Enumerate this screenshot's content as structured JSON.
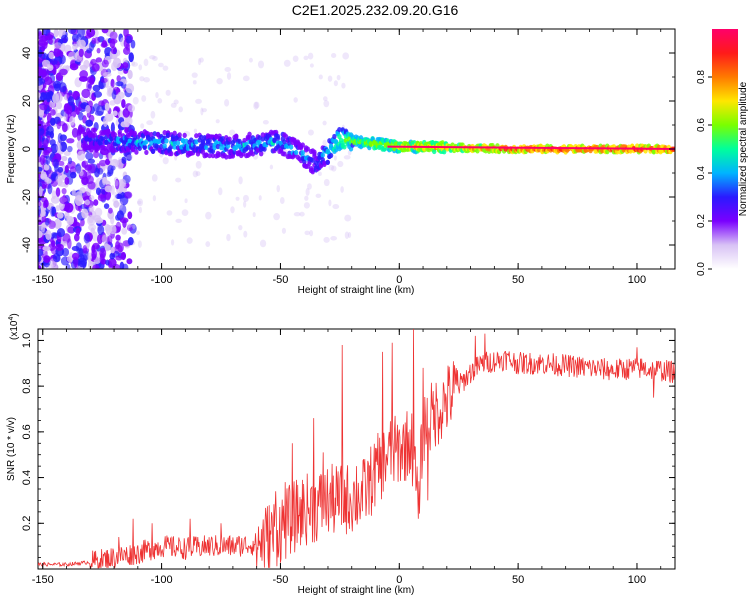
{
  "title": "C2E1.2025.232.09.20.G16",
  "chart_data": [
    {
      "type": "heatmap",
      "title": "C2E1.2025.232.09.20.G16",
      "xlabel": "Height of straight line (km)",
      "ylabel": "Frequency (Hz)",
      "xlim": [
        -152,
        116
      ],
      "ylim": [
        -50,
        50
      ],
      "xticks": [
        -150,
        -100,
        -50,
        0,
        50,
        100
      ],
      "yticks": [
        -40,
        -20,
        0,
        20,
        40
      ],
      "colorbar": {
        "label": "Normalized spectral amplitude",
        "range": [
          0,
          1
        ],
        "ticks": [
          "0.0",
          "0.2",
          "0.4",
          "0.6",
          "0.8"
        ],
        "colors": [
          "#ffffff",
          "#d8c2f5",
          "#7a00ff",
          "#2a1aff",
          "#00b4ff",
          "#00ff9c",
          "#7aff00",
          "#ffe600",
          "#ff7a00",
          "#ff1a1a",
          "#ff006a"
        ]
      },
      "description_profile": [
        {
          "x": -130,
          "freq": 4,
          "amp": 0.3
        },
        {
          "x": -110,
          "freq": 3,
          "amp": 0.4
        },
        {
          "x": -90,
          "freq": 2,
          "amp": 0.42
        },
        {
          "x": -70,
          "freq": 1,
          "amp": 0.4
        },
        {
          "x": -50,
          "freq": 3,
          "amp": 0.42
        },
        {
          "x": -35,
          "freq": -6,
          "amp": 0.35
        },
        {
          "x": -25,
          "freq": 4,
          "amp": 0.55
        },
        {
          "x": 0,
          "freq": 1,
          "amp": 0.7
        },
        {
          "x": 50,
          "freq": 0,
          "amp": 0.85
        },
        {
          "x": 110,
          "freq": 0,
          "amp": 0.9
        }
      ]
    },
    {
      "type": "line",
      "xlabel": "Height of straight line (km)",
      "ylabel": "SNR (10 * v/v)",
      "multiplier_label": "(x10",
      "multiplier_exp": "4",
      "xlim": [
        -152,
        116
      ],
      "ylim": [
        0,
        1.05
      ],
      "xticks": [
        -150,
        -100,
        -50,
        0,
        50,
        100
      ],
      "yticks": [
        "0.2",
        "0.4",
        "0.6",
        "0.8",
        "1.0"
      ],
      "color": "#ee3333",
      "series": [
        {
          "name": "SNR",
          "x": [
            -150,
            -140,
            -130,
            -120,
            -110,
            -100,
            -90,
            -80,
            -70,
            -60,
            -55,
            -50,
            -45,
            -40,
            -35,
            -30,
            -25,
            -20,
            -15,
            -10,
            -5,
            0,
            5,
            8,
            10,
            15,
            20,
            25,
            30,
            35,
            40,
            45,
            50,
            55,
            60,
            70,
            80,
            90,
            100,
            110,
            116
          ],
          "values": [
            0.02,
            0.02,
            0.03,
            0.05,
            0.07,
            0.1,
            0.09,
            0.1,
            0.1,
            0.11,
            0.14,
            0.18,
            0.22,
            0.26,
            0.27,
            0.3,
            0.3,
            0.31,
            0.33,
            0.42,
            0.5,
            0.52,
            0.56,
            0.3,
            0.62,
            0.68,
            0.74,
            0.8,
            0.86,
            0.9,
            0.91,
            0.92,
            0.9,
            0.9,
            0.9,
            0.89,
            0.88,
            0.87,
            0.88,
            0.87,
            0.86
          ]
        }
      ],
      "spikes": [
        {
          "x": -118,
          "value": 0.14
        },
        {
          "x": -112,
          "value": 0.22
        },
        {
          "x": -104,
          "value": 0.2
        },
        {
          "x": -88,
          "value": 0.22
        },
        {
          "x": -75,
          "value": 0.2
        },
        {
          "x": -52,
          "value": 0.34
        },
        {
          "x": -48,
          "value": 0.38
        },
        {
          "x": -45,
          "value": 0.55
        },
        {
          "x": -36,
          "value": 0.66
        },
        {
          "x": -32,
          "value": 0.51
        },
        {
          "x": -24,
          "value": 0.98
        },
        {
          "x": -18,
          "value": 0.45
        },
        {
          "x": -7,
          "value": 0.95
        },
        {
          "x": -3,
          "value": 0.99
        },
        {
          "x": 6,
          "value": 1.05
        },
        {
          "x": 10,
          "value": 0.88
        },
        {
          "x": 32,
          "value": 1.02
        },
        {
          "x": 36,
          "value": 1.03
        },
        {
          "x": 100,
          "value": 0.97
        },
        {
          "x": 107,
          "value": 0.94
        }
      ],
      "dips": [
        {
          "x": 8,
          "value": 0.22
        },
        {
          "x": 12,
          "value": 0.3
        },
        {
          "x": 107,
          "value": 0.75
        }
      ]
    }
  ]
}
